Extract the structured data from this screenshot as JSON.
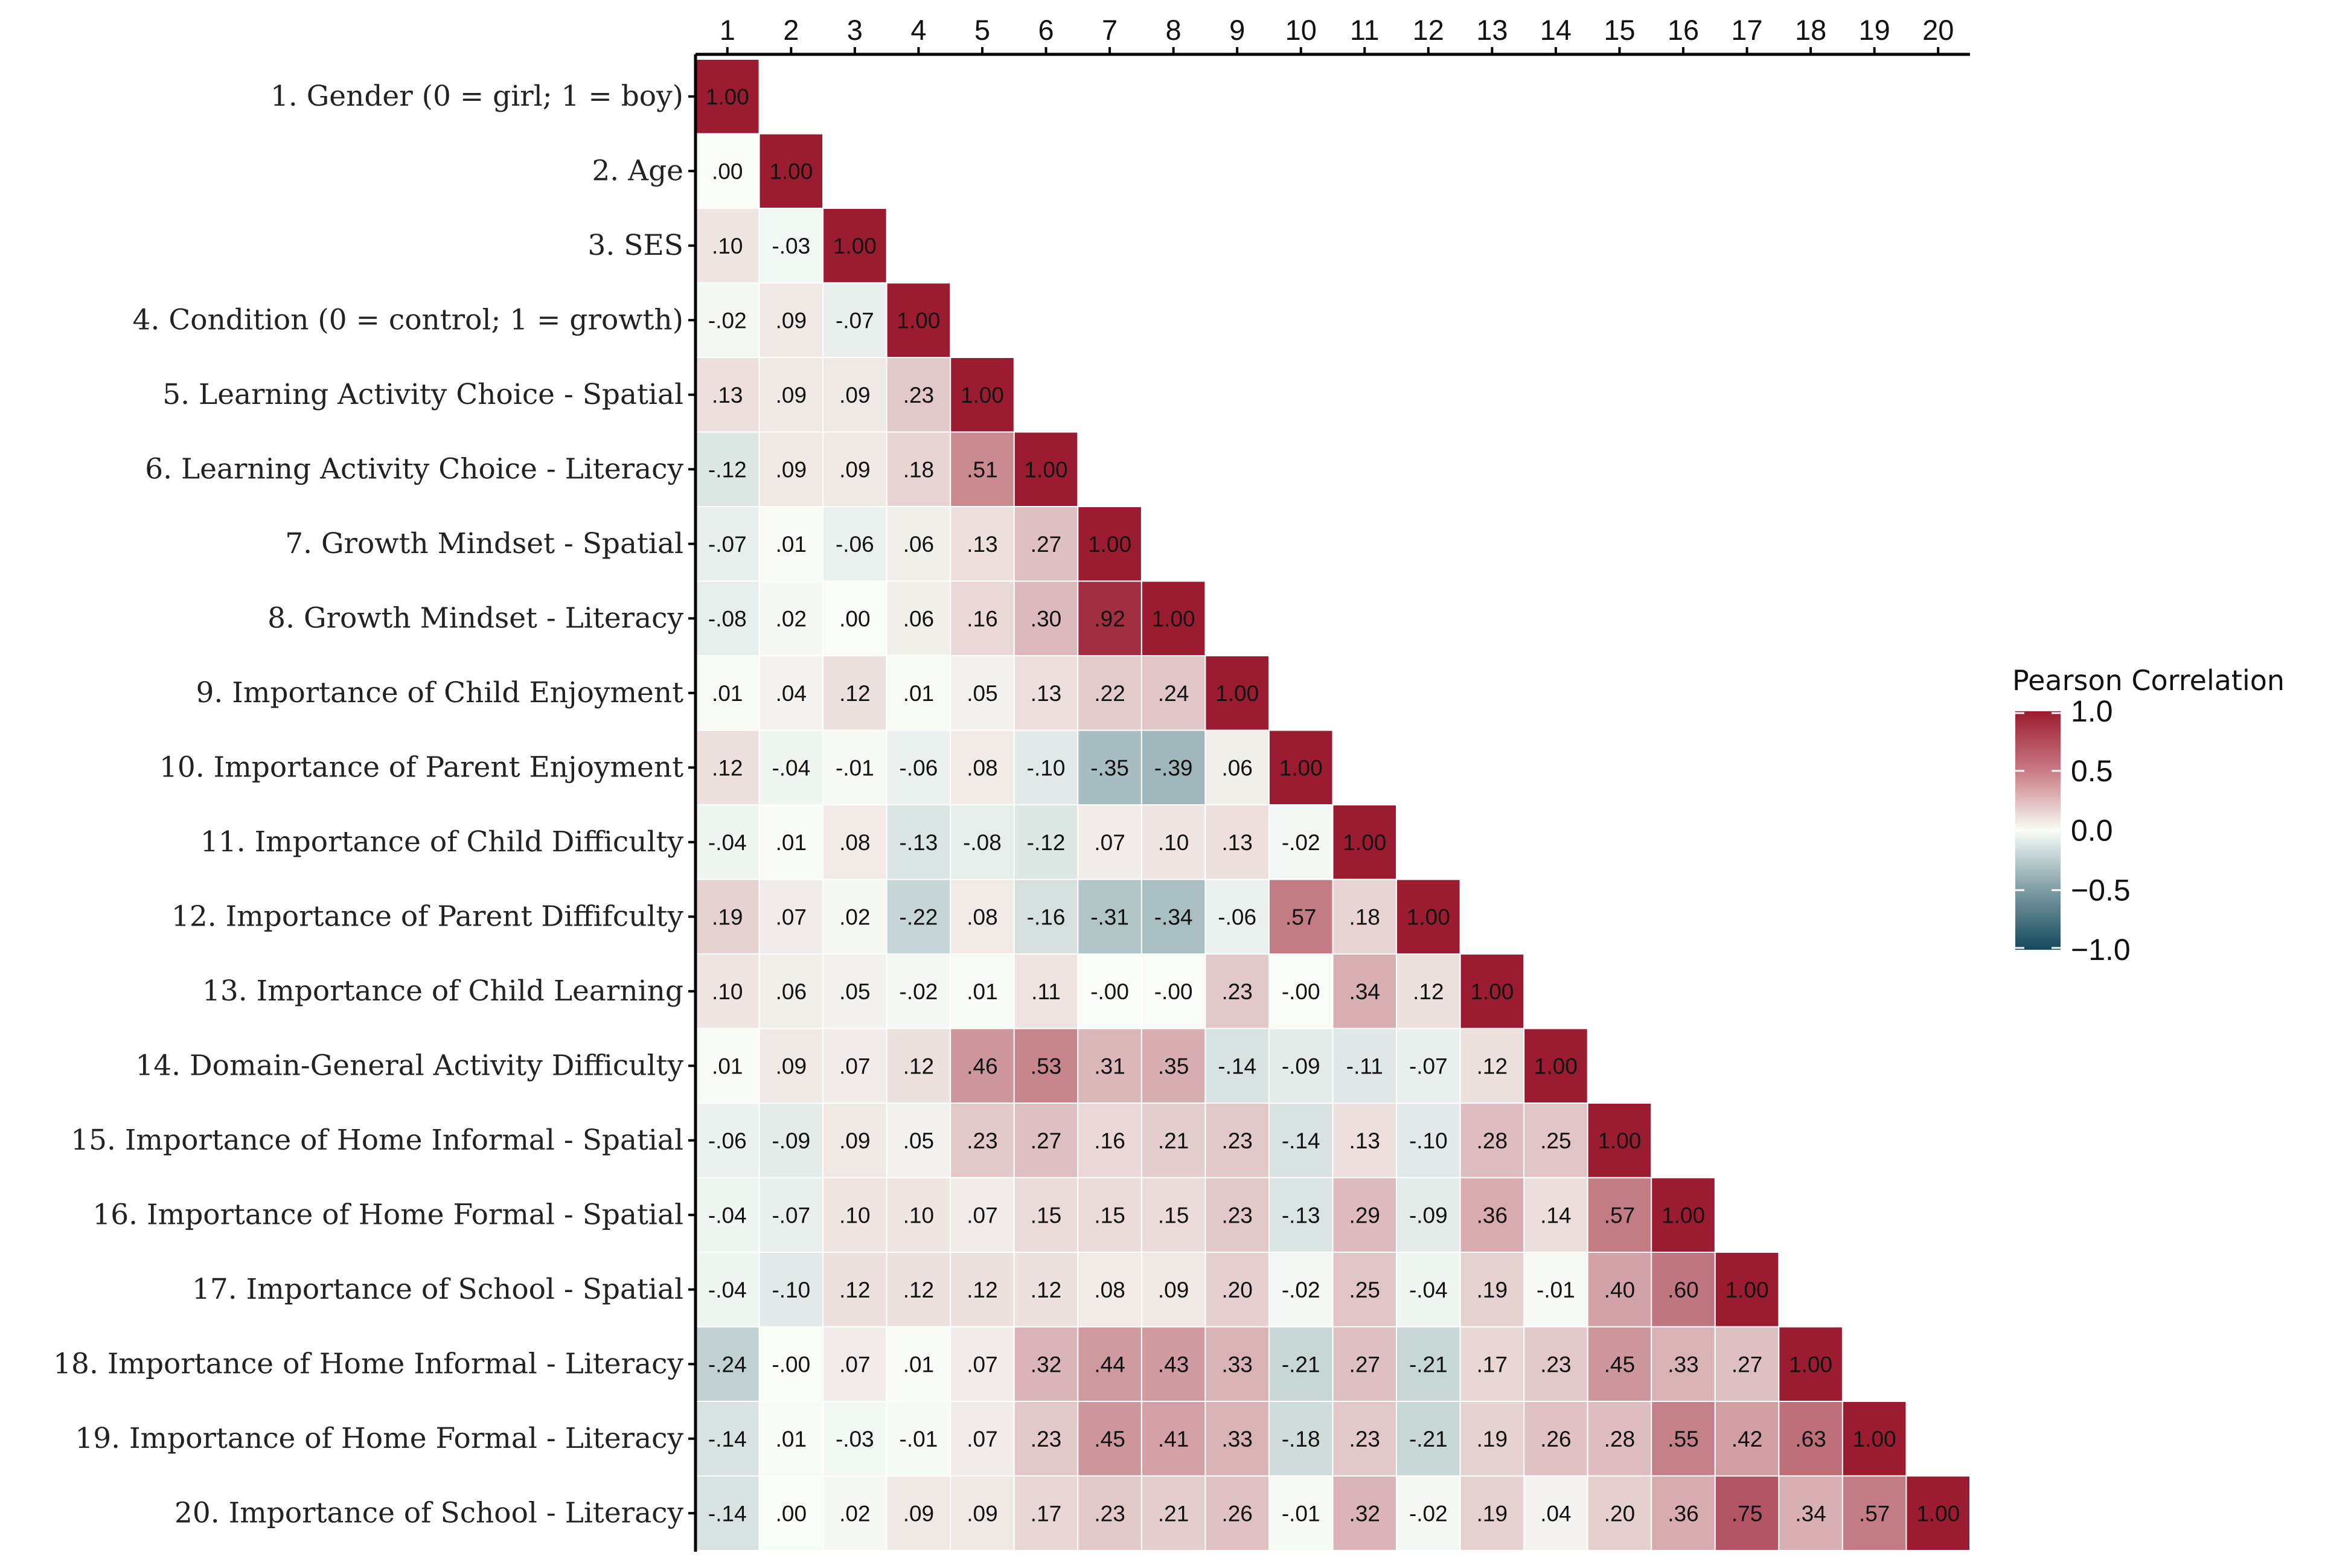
{
  "chart_data": {
    "type": "heatmap",
    "variables": [
      "1. Gender (0 = girl; 1 = boy)",
      "2. Age",
      "3. SES",
      "4. Condition (0 = control; 1 = growth)",
      "5. Learning Activity Choice - Spatial",
      "6. Learning Activity Choice - Literacy",
      "7. Growth Mindset - Spatial",
      "8. Growth Mindset - Literacy",
      "9. Importance of Child Enjoyment",
      "10. Importance of Parent Enjoyment",
      "11. Importance of Child Difficulty",
      "12. Importance of Parent Diffifculty",
      "13. Importance of Child Learning",
      "14. Domain-General Activity Difficulty",
      "15. Importance of Home Informal - Spatial",
      "16. Importance of Home Formal - Spatial",
      "17. Importance of School - Spatial",
      "18. Importance of Home Informal - Literacy",
      "19. Importance of Home Formal - Literacy",
      "20. Importance of School - Literacy"
    ],
    "column_labels": [
      "1",
      "2",
      "3",
      "4",
      "5",
      "6",
      "7",
      "8",
      "9",
      "10",
      "11",
      "12",
      "13",
      "14",
      "15",
      "16",
      "17",
      "18",
      "19",
      "20"
    ],
    "matrix_lower": [
      [
        1.0
      ],
      [
        0.0,
        1.0
      ],
      [
        0.1,
        -0.03,
        1.0
      ],
      [
        -0.02,
        0.09,
        -0.07,
        1.0
      ],
      [
        0.13,
        0.09,
        0.09,
        0.23,
        1.0
      ],
      [
        -0.12,
        0.09,
        0.09,
        0.18,
        0.51,
        1.0
      ],
      [
        -0.07,
        0.01,
        -0.06,
        0.06,
        0.13,
        0.27,
        1.0
      ],
      [
        -0.08,
        0.02,
        0.0,
        0.06,
        0.16,
        0.3,
        0.92,
        1.0
      ],
      [
        0.01,
        0.04,
        0.12,
        0.01,
        0.05,
        0.13,
        0.22,
        0.24,
        1.0
      ],
      [
        0.12,
        -0.04,
        -0.01,
        -0.06,
        0.08,
        -0.1,
        -0.35,
        -0.39,
        0.06,
        1.0
      ],
      [
        -0.04,
        0.01,
        0.08,
        -0.13,
        -0.08,
        -0.12,
        0.07,
        0.1,
        0.13,
        -0.02,
        1.0
      ],
      [
        0.19,
        0.07,
        0.02,
        -0.22,
        0.08,
        -0.16,
        -0.31,
        -0.34,
        -0.06,
        0.57,
        0.18,
        1.0
      ],
      [
        0.1,
        0.06,
        0.05,
        -0.02,
        0.01,
        0.11,
        -0.0,
        -0.0,
        0.23,
        -0.0,
        0.34,
        0.12,
        1.0
      ],
      [
        0.01,
        0.09,
        0.07,
        0.12,
        0.46,
        0.53,
        0.31,
        0.35,
        -0.14,
        -0.09,
        -0.11,
        -0.07,
        0.12,
        1.0
      ],
      [
        -0.06,
        -0.09,
        0.09,
        0.05,
        0.23,
        0.27,
        0.16,
        0.21,
        0.23,
        -0.14,
        0.13,
        -0.1,
        0.28,
        0.25,
        1.0
      ],
      [
        -0.04,
        -0.07,
        0.1,
        0.1,
        0.07,
        0.15,
        0.15,
        0.15,
        0.23,
        -0.13,
        0.29,
        -0.09,
        0.36,
        0.14,
        0.57,
        1.0
      ],
      [
        -0.04,
        -0.1,
        0.12,
        0.12,
        0.12,
        0.12,
        0.08,
        0.09,
        0.2,
        -0.02,
        0.25,
        -0.04,
        0.19,
        -0.01,
        0.4,
        0.6,
        1.0
      ],
      [
        -0.24,
        -0.0,
        0.07,
        0.01,
        0.07,
        0.32,
        0.44,
        0.43,
        0.33,
        -0.21,
        0.27,
        -0.21,
        0.17,
        0.23,
        0.45,
        0.33,
        0.27,
        1.0
      ],
      [
        -0.14,
        0.01,
        -0.03,
        -0.01,
        0.07,
        0.23,
        0.45,
        0.41,
        0.33,
        -0.18,
        0.23,
        -0.21,
        0.19,
        0.26,
        0.28,
        0.55,
        0.42,
        0.63,
        1.0
      ],
      [
        -0.14,
        0.0,
        0.02,
        0.09,
        0.09,
        0.17,
        0.23,
        0.21,
        0.26,
        -0.01,
        0.32,
        -0.02,
        0.19,
        0.04,
        0.2,
        0.36,
        0.75,
        0.34,
        0.57,
        1.0
      ]
    ],
    "cell_labels": [
      [
        "1.00"
      ],
      [
        ".00",
        "1.00"
      ],
      [
        ".10",
        "-.03",
        "1.00"
      ],
      [
        "-.02",
        ".09",
        "-.07",
        "1.00"
      ],
      [
        ".13",
        ".09",
        ".09",
        ".23",
        "1.00"
      ],
      [
        "-.12",
        ".09",
        ".09",
        ".18",
        ".51",
        "1.00"
      ],
      [
        "-.07",
        ".01",
        "-.06",
        ".06",
        ".13",
        ".27",
        "1.00"
      ],
      [
        "-.08",
        ".02",
        ".00",
        ".06",
        ".16",
        ".30",
        ".92",
        "1.00"
      ],
      [
        ".01",
        ".04",
        ".12",
        ".01",
        ".05",
        ".13",
        ".22",
        ".24",
        "1.00"
      ],
      [
        ".12",
        "-.04",
        "-.01",
        "-.06",
        ".08",
        "-.10",
        "-.35",
        "-.39",
        ".06",
        "1.00"
      ],
      [
        "-.04",
        ".01",
        ".08",
        "-.13",
        "-.08",
        "-.12",
        ".07",
        ".10",
        ".13",
        "-.02",
        "1.00"
      ],
      [
        ".19",
        ".07",
        ".02",
        "-.22",
        ".08",
        "-.16",
        "-.31",
        "-.34",
        "-.06",
        ".57",
        ".18",
        "1.00"
      ],
      [
        ".10",
        ".06",
        ".05",
        "-.02",
        ".01",
        ".11",
        "-.00",
        "-.00",
        ".23",
        "-.00",
        ".34",
        ".12",
        "1.00"
      ],
      [
        ".01",
        ".09",
        ".07",
        ".12",
        ".46",
        ".53",
        ".31",
        ".35",
        "-.14",
        "-.09",
        "-.11",
        "-.07",
        ".12",
        "1.00"
      ],
      [
        "-.06",
        "-.09",
        ".09",
        ".05",
        ".23",
        ".27",
        ".16",
        ".21",
        ".23",
        "-.14",
        ".13",
        "-.10",
        ".28",
        ".25",
        "1.00"
      ],
      [
        "-.04",
        "-.07",
        ".10",
        ".10",
        ".07",
        ".15",
        ".15",
        ".15",
        ".23",
        "-.13",
        ".29",
        "-.09",
        ".36",
        ".14",
        ".57",
        "1.00"
      ],
      [
        "-.04",
        "-.10",
        ".12",
        ".12",
        ".12",
        ".12",
        ".08",
        ".09",
        ".20",
        "-.02",
        ".25",
        "-.04",
        ".19",
        "-.01",
        ".40",
        ".60",
        "1.00"
      ],
      [
        "-.24",
        "-.00",
        ".07",
        ".01",
        ".07",
        ".32",
        ".44",
        ".43",
        ".33",
        "-.21",
        ".27",
        "-.21",
        ".17",
        ".23",
        ".45",
        ".33",
        ".27",
        "1.00"
      ],
      [
        "-.14",
        ".01",
        "-.03",
        "-.01",
        ".07",
        ".23",
        ".45",
        ".41",
        ".33",
        "-.18",
        ".23",
        "-.21",
        ".19",
        ".26",
        ".28",
        ".55",
        ".42",
        ".63",
        "1.00"
      ],
      [
        "-.14",
        ".00",
        ".02",
        ".09",
        ".09",
        ".17",
        ".23",
        ".21",
        ".26",
        "-.01",
        ".32",
        "-.02",
        ".19",
        ".04",
        ".20",
        ".36",
        ".75",
        ".34",
        ".57",
        "1.00"
      ]
    ],
    "legend": {
      "title": "Pearson Correlation",
      "ticks": [
        "1.0",
        "0.5",
        "0.0",
        "−0.5",
        "−1.0"
      ],
      "tick_values": [
        1.0,
        0.5,
        0.0,
        -0.5,
        -1.0
      ],
      "range": [
        -1.0,
        1.0
      ],
      "placement": "right"
    },
    "colors": {
      "high": "#9b1c31",
      "mid": "#f8fcf7",
      "low": "#14495c",
      "axis": "#000000",
      "cell_border": "#ffffff"
    }
  }
}
